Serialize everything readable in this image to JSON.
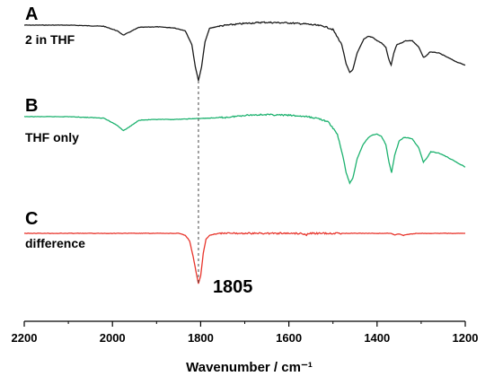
{
  "chart_data": {
    "type": "line",
    "title": "",
    "xlabel": "Wavenumber / cm⁻¹",
    "ylabel": "",
    "xlim": [
      2200,
      1200
    ],
    "x_reversed": true,
    "xticks": [
      2200,
      2000,
      1800,
      1600,
      1400,
      1200
    ],
    "grid": false,
    "annotation": {
      "text": "1805",
      "x": 1805
    },
    "reference_line": {
      "x": 1805,
      "style": "dashed"
    },
    "series": [
      {
        "letter": "A",
        "name": "2 in THF",
        "color": "#1a1a1a",
        "points": [
          [
            2200,
            0.0
          ],
          [
            2100,
            0.0
          ],
          [
            2020,
            0.02
          ],
          [
            1990,
            0.1
          ],
          [
            1975,
            0.18
          ],
          [
            1960,
            0.12
          ],
          [
            1940,
            0.04
          ],
          [
            1900,
            0.03
          ],
          [
            1860,
            0.05
          ],
          [
            1835,
            0.1
          ],
          [
            1820,
            0.35
          ],
          [
            1812,
            0.75
          ],
          [
            1805,
            1.0
          ],
          [
            1798,
            0.75
          ],
          [
            1790,
            0.3
          ],
          [
            1780,
            0.06
          ],
          [
            1760,
            0.02
          ],
          [
            1740,
            0.0
          ],
          [
            1700,
            -0.03
          ],
          [
            1660,
            -0.05
          ],
          [
            1600,
            -0.04
          ],
          [
            1560,
            -0.02
          ],
          [
            1520,
            0.02
          ],
          [
            1500,
            0.08
          ],
          [
            1480,
            0.35
          ],
          [
            1470,
            0.7
          ],
          [
            1462,
            0.85
          ],
          [
            1455,
            0.8
          ],
          [
            1445,
            0.5
          ],
          [
            1430,
            0.25
          ],
          [
            1420,
            0.2
          ],
          [
            1410,
            0.22
          ],
          [
            1400,
            0.28
          ],
          [
            1390,
            0.32
          ],
          [
            1380,
            0.4
          ],
          [
            1374,
            0.6
          ],
          [
            1368,
            0.72
          ],
          [
            1362,
            0.5
          ],
          [
            1355,
            0.35
          ],
          [
            1345,
            0.32
          ],
          [
            1335,
            0.28
          ],
          [
            1320,
            0.28
          ],
          [
            1305,
            0.4
          ],
          [
            1295,
            0.58
          ],
          [
            1288,
            0.55
          ],
          [
            1280,
            0.48
          ],
          [
            1260,
            0.5
          ],
          [
            1240,
            0.58
          ],
          [
            1220,
            0.66
          ],
          [
            1200,
            0.72
          ]
        ]
      },
      {
        "letter": "B",
        "name": "THF only",
        "color": "#1db26f",
        "points": [
          [
            2200,
            0.0
          ],
          [
            2100,
            0.0
          ],
          [
            2020,
            0.02
          ],
          [
            1990,
            0.12
          ],
          [
            1975,
            0.2
          ],
          [
            1960,
            0.14
          ],
          [
            1940,
            0.05
          ],
          [
            1900,
            0.04
          ],
          [
            1860,
            0.04
          ],
          [
            1820,
            0.03
          ],
          [
            1780,
            0.02
          ],
          [
            1740,
            0.01
          ],
          [
            1700,
            -0.02
          ],
          [
            1660,
            -0.03
          ],
          [
            1600,
            -0.02
          ],
          [
            1560,
            0.0
          ],
          [
            1530,
            0.03
          ],
          [
            1510,
            0.08
          ],
          [
            1490,
            0.25
          ],
          [
            1478,
            0.55
          ],
          [
            1470,
            0.8
          ],
          [
            1462,
            0.95
          ],
          [
            1455,
            0.88
          ],
          [
            1445,
            0.6
          ],
          [
            1432,
            0.4
          ],
          [
            1420,
            0.3
          ],
          [
            1410,
            0.26
          ],
          [
            1400,
            0.25
          ],
          [
            1390,
            0.28
          ],
          [
            1380,
            0.4
          ],
          [
            1373,
            0.65
          ],
          [
            1367,
            0.8
          ],
          [
            1360,
            0.55
          ],
          [
            1350,
            0.35
          ],
          [
            1340,
            0.3
          ],
          [
            1330,
            0.3
          ],
          [
            1320,
            0.32
          ],
          [
            1305,
            0.45
          ],
          [
            1295,
            0.65
          ],
          [
            1288,
            0.6
          ],
          [
            1278,
            0.5
          ],
          [
            1260,
            0.52
          ],
          [
            1240,
            0.58
          ],
          [
            1220,
            0.65
          ],
          [
            1200,
            0.72
          ]
        ]
      },
      {
        "letter": "C",
        "name": "difference",
        "color": "#e8352c",
        "points": [
          [
            2200,
            0.0
          ],
          [
            2100,
            0.0
          ],
          [
            2000,
            0.0
          ],
          [
            1900,
            0.0
          ],
          [
            1850,
            0.0
          ],
          [
            1835,
            0.04
          ],
          [
            1825,
            0.15
          ],
          [
            1815,
            0.55
          ],
          [
            1808,
            0.88
          ],
          [
            1805,
            1.0
          ],
          [
            1800,
            0.85
          ],
          [
            1794,
            0.4
          ],
          [
            1788,
            0.12
          ],
          [
            1780,
            0.04
          ],
          [
            1760,
            0.0
          ],
          [
            1700,
            0.0
          ],
          [
            1600,
            0.0
          ],
          [
            1570,
            0.0
          ],
          [
            1560,
            0.03
          ],
          [
            1555,
            0.0
          ],
          [
            1500,
            0.0
          ],
          [
            1400,
            0.0
          ],
          [
            1370,
            0.0
          ],
          [
            1360,
            0.03
          ],
          [
            1350,
            0.01
          ],
          [
            1340,
            0.04
          ],
          [
            1330,
            0.02
          ],
          [
            1310,
            0.0
          ],
          [
            1250,
            0.0
          ],
          [
            1200,
            0.0
          ]
        ]
      }
    ]
  }
}
